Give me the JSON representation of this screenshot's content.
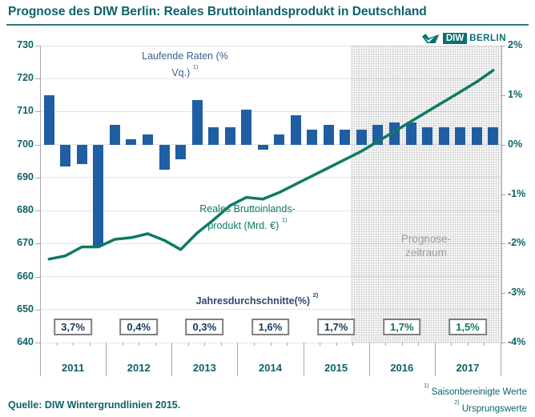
{
  "title": "Prognose des DIW Berlin: Reales Bruttoinlandsprodukt in Deutschland",
  "logo": {
    "mark": "diw-check-mark",
    "diw": "DIW",
    "berlin": "BERLIN"
  },
  "source_line": "Quelle: DIW Wintergrundlinien 2015.",
  "footnotes": [
    {
      "sup": "1)",
      "text": "Saisonbereinigte Werte"
    },
    {
      "sup": "2)",
      "text": "Ursprungswerte"
    }
  ],
  "annotations": {
    "bar_label": {
      "l1": "Laufende Raten (%",
      "l2": "Vq.) ",
      "sup": "1)"
    },
    "line_label": {
      "l1": "Reales Bruttoinlands-",
      "l2": "produkt (Mrd. €) ",
      "sup": "1)"
    },
    "averages_label": {
      "text": "Jahresdurchschnitte(%) ",
      "sup": "2)"
    },
    "forecast_label": {
      "l1": "Prognose-",
      "l2": "zeitraum"
    }
  },
  "colors": {
    "teal_text": "#0c6269",
    "line_green": "#0e7a64",
    "bar_blue": "#1f5ea3",
    "bar_series_label_blue": "#38618e",
    "averages_navy": "#17375e",
    "averages_forecast_green": "#0c7a5e",
    "forecast_label_gray": "#9b9b9b",
    "gridline": "#e4e4e4",
    "axis": "#a9a9a9"
  },
  "chart_data": {
    "type": "bar+line combo",
    "title": "Prognose des DIW Berlin: Reales Bruttoinlandsprodukt in Deutschland",
    "grid": "horizontal",
    "x_years": [
      "2011",
      "2012",
      "2013",
      "2014",
      "2015",
      "2016",
      "2017"
    ],
    "x_quarters": [
      "2011 Q1",
      "2011 Q2",
      "2011 Q3",
      "2011 Q4",
      "2012 Q1",
      "2012 Q2",
      "2012 Q3",
      "2012 Q4",
      "2013 Q1",
      "2013 Q2",
      "2013 Q3",
      "2013 Q4",
      "2014 Q1",
      "2014 Q2",
      "2014 Q3",
      "2014 Q4",
      "2015 Q1",
      "2015 Q2",
      "2015 Q3",
      "2015 Q4",
      "2016 Q1",
      "2016 Q2",
      "2016 Q3",
      "2016 Q4",
      "2017 Q1",
      "2017 Q2",
      "2017 Q3",
      "2017 Q4"
    ],
    "bar_series": {
      "name": "Laufende Raten (% Vq.) 1)",
      "axis": "right",
      "unit": "% Veraenderung gegenueber Vorquartal",
      "values": [
        1.0,
        -0.45,
        -0.4,
        -2.05,
        0.4,
        0.1,
        0.2,
        -0.5,
        -0.3,
        0.9,
        0.35,
        0.35,
        0.7,
        -0.1,
        0.2,
        0.6,
        0.3,
        0.4,
        0.3,
        0.3,
        0.4,
        0.45,
        0.45,
        0.35,
        0.35,
        0.35,
        0.35,
        0.35
      ]
    },
    "line_series": {
      "name": "Reales Bruttoinlandsprodukt (Mrd. €) 1)",
      "axis": "left",
      "unit": "Mrd. €",
      "values": [
        665.3,
        666.3,
        669,
        669,
        671.3,
        671.8,
        673,
        671,
        668.2,
        673.2,
        677.2,
        681.5,
        684,
        683.5,
        685.5,
        688,
        690.5,
        693,
        695.5,
        698,
        701,
        704,
        707,
        710,
        713,
        716,
        719,
        722.5
      ]
    },
    "annual_averages": {
      "label": "Jahresdurchschnitte(%) 2)",
      "values": [
        "3,7%",
        "0,4%",
        "0,3%",
        "1,6%",
        "1,7%",
        "1,7%",
        "1,5%"
      ],
      "forecast_start_index": 5
    },
    "left_axis": {
      "min": 640,
      "max": 730,
      "step": 10,
      "ticks": [
        730,
        720,
        710,
        700,
        690,
        680,
        670,
        660,
        650,
        640
      ]
    },
    "right_axis": {
      "ticks": [
        "2%",
        "1%",
        "0%",
        "-1%",
        "-2%",
        "-3%",
        "-4%"
      ],
      "min": -4,
      "max": 2
    },
    "forecast_region": {
      "label": "Prognose-zeitraum",
      "start_quarter_index": 19,
      "start_quarter": "2015 Q4"
    }
  }
}
